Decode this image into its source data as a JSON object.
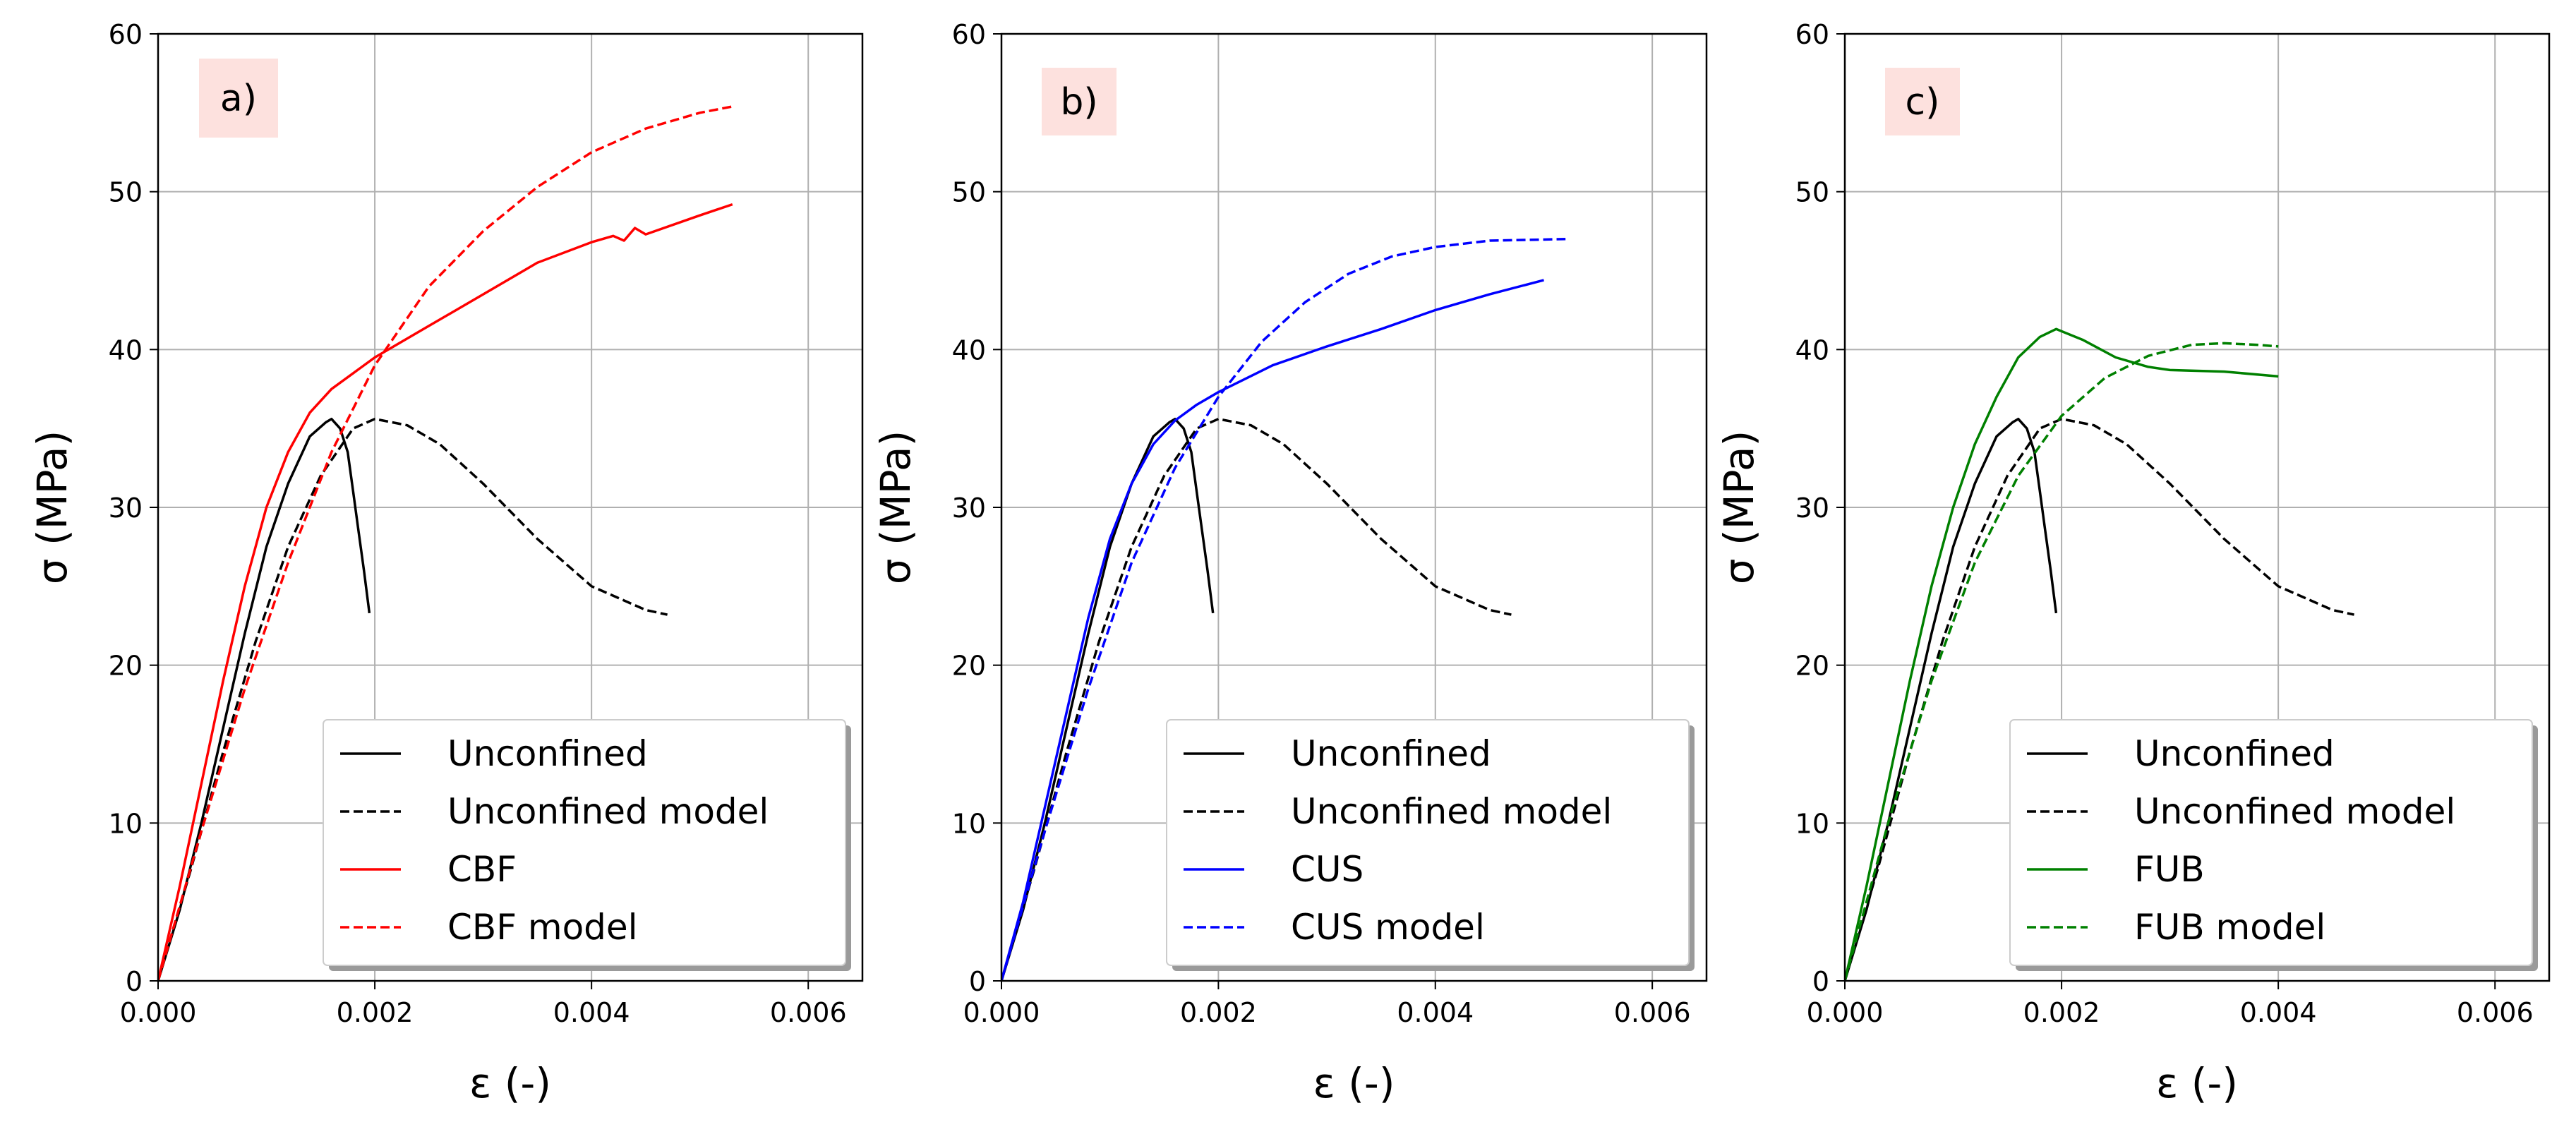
{
  "chart_data": [
    {
      "type": "line",
      "panel_label": "a)",
      "xlabel": "ε (-)",
      "ylabel": "σ  (MPa)",
      "xlim": [
        0,
        0.0065
      ],
      "ylim": [
        0,
        60
      ],
      "xticks": [
        0.0,
        0.002,
        0.004,
        0.006
      ],
      "xtick_labels": [
        "0.000",
        "0.002",
        "0.004",
        "0.006"
      ],
      "yticks": [
        0,
        10,
        20,
        30,
        40,
        50,
        60
      ],
      "ytick_labels": [
        "0",
        "10",
        "20",
        "30",
        "40",
        "50",
        "60"
      ],
      "grid": true,
      "legend_position": "lower-right",
      "series": [
        {
          "name": "Unconfined",
          "color": "#000000",
          "dash": "solid",
          "x": [
            0,
            0.0002,
            0.0004,
            0.0006,
            0.0008,
            0.001,
            0.0012,
            0.0014,
            0.00155,
            0.0016,
            0.00168,
            0.00175,
            0.0018,
            0.00185,
            0.0019,
            0.00195
          ],
          "y": [
            0,
            4.5,
            10,
            16,
            22,
            27.5,
            31.5,
            34.5,
            35.4,
            35.6,
            35,
            33.5,
            31,
            28.5,
            26,
            23.3
          ]
        },
        {
          "name": "Unconfined model",
          "color": "#000000",
          "dash": "dashed",
          "x": [
            0,
            0.0003,
            0.0006,
            0.0009,
            0.0012,
            0.0015,
            0.0018,
            0.002,
            0.0023,
            0.0026,
            0.003,
            0.0035,
            0.004,
            0.0045,
            0.0047
          ],
          "y": [
            0,
            7,
            14.5,
            21.5,
            27.5,
            32,
            35,
            35.6,
            35.2,
            34,
            31.5,
            28,
            25,
            23.5,
            23.2
          ]
        },
        {
          "name": "CBF",
          "color": "#ff0000",
          "dash": "solid",
          "x": [
            0,
            0.0002,
            0.0004,
            0.0006,
            0.0008,
            0.001,
            0.0012,
            0.0014,
            0.0016,
            0.0018,
            0.002,
            0.0025,
            0.003,
            0.0035,
            0.004,
            0.0042,
            0.0043,
            0.0044,
            0.0045,
            0.005,
            0.0053
          ],
          "y": [
            0,
            6,
            12.5,
            19,
            25,
            30,
            33.5,
            36,
            37.5,
            38.5,
            39.5,
            41.5,
            43.5,
            45.5,
            46.8,
            47.2,
            46.9,
            47.7,
            47.3,
            48.5,
            49.2
          ]
        },
        {
          "name": "CBF model",
          "color": "#ff0000",
          "dash": "dashed",
          "x": [
            0,
            0.0004,
            0.0008,
            0.0012,
            0.0016,
            0.002,
            0.0025,
            0.003,
            0.0035,
            0.004,
            0.0045,
            0.005,
            0.0053
          ],
          "y": [
            0,
            9.5,
            18.5,
            26.5,
            33.5,
            39,
            44,
            47.5,
            50.3,
            52.5,
            54,
            55,
            55.4
          ]
        }
      ]
    },
    {
      "type": "line",
      "panel_label": "b)",
      "xlabel": "ε (-)",
      "ylabel": "σ  (MPa)",
      "xlim": [
        0,
        0.0065
      ],
      "ylim": [
        0,
        60
      ],
      "xticks": [
        0.0,
        0.002,
        0.004,
        0.006
      ],
      "xtick_labels": [
        "0.000",
        "0.002",
        "0.004",
        "0.006"
      ],
      "yticks": [
        0,
        10,
        20,
        30,
        40,
        50,
        60
      ],
      "ytick_labels": [
        "0",
        "10",
        "20",
        "30",
        "40",
        "50",
        "60"
      ],
      "grid": true,
      "legend_position": "lower-right",
      "series": [
        {
          "name": "Unconfined",
          "color": "#000000",
          "dash": "solid",
          "x": [
            0,
            0.0002,
            0.0004,
            0.0006,
            0.0008,
            0.001,
            0.0012,
            0.0014,
            0.00155,
            0.0016,
            0.00168,
            0.00175,
            0.0018,
            0.00185,
            0.0019,
            0.00195
          ],
          "y": [
            0,
            4.5,
            10,
            16,
            22,
            27.5,
            31.5,
            34.5,
            35.4,
            35.6,
            35,
            33.5,
            31,
            28.5,
            26,
            23.3
          ]
        },
        {
          "name": "Unconfined model",
          "color": "#000000",
          "dash": "dashed",
          "x": [
            0,
            0.0003,
            0.0006,
            0.0009,
            0.0012,
            0.0015,
            0.0018,
            0.002,
            0.0023,
            0.0026,
            0.003,
            0.0035,
            0.004,
            0.0045,
            0.0047
          ],
          "y": [
            0,
            7,
            14.5,
            21.5,
            27.5,
            32,
            35,
            35.6,
            35.2,
            34,
            31.5,
            28,
            25,
            23.5,
            23.2
          ]
        },
        {
          "name": "CUS",
          "color": "#0000ff",
          "dash": "solid",
          "x": [
            0,
            0.0002,
            0.0004,
            0.0006,
            0.0008,
            0.001,
            0.0012,
            0.0014,
            0.0016,
            0.0018,
            0.002,
            0.0025,
            0.003,
            0.0035,
            0.004,
            0.0045,
            0.005
          ],
          "y": [
            0,
            5,
            11,
            17,
            23,
            28,
            31.5,
            34,
            35.5,
            36.5,
            37.3,
            39,
            40.2,
            41.3,
            42.5,
            43.5,
            44.4
          ]
        },
        {
          "name": "CUS model",
          "color": "#0000ff",
          "dash": "dashed",
          "x": [
            0,
            0.0004,
            0.0008,
            0.0012,
            0.0016,
            0.002,
            0.0024,
            0.0028,
            0.0032,
            0.0036,
            0.004,
            0.0045,
            0.0052
          ],
          "y": [
            0,
            9.5,
            18.5,
            26.5,
            32.5,
            37,
            40.5,
            43,
            44.8,
            45.9,
            46.5,
            46.9,
            47
          ]
        }
      ]
    },
    {
      "type": "line",
      "panel_label": "c)",
      "xlabel": "ε (-)",
      "ylabel": "σ  (MPa)",
      "xlim": [
        0,
        0.0065
      ],
      "ylim": [
        0,
        60
      ],
      "xticks": [
        0.0,
        0.002,
        0.004,
        0.006
      ],
      "xtick_labels": [
        "0.000",
        "0.002",
        "0.004",
        "0.006"
      ],
      "yticks": [
        0,
        10,
        20,
        30,
        40,
        50,
        60
      ],
      "ytick_labels": [
        "0",
        "10",
        "20",
        "30",
        "40",
        "50",
        "60"
      ],
      "grid": true,
      "legend_position": "lower-right",
      "series": [
        {
          "name": "Unconfined",
          "color": "#000000",
          "dash": "solid",
          "x": [
            0,
            0.0002,
            0.0004,
            0.0006,
            0.0008,
            0.001,
            0.0012,
            0.0014,
            0.00155,
            0.0016,
            0.00168,
            0.00175,
            0.0018,
            0.00185,
            0.0019,
            0.00195
          ],
          "y": [
            0,
            4.5,
            10,
            16,
            22,
            27.5,
            31.5,
            34.5,
            35.4,
            35.6,
            35,
            33.5,
            31,
            28.5,
            26,
            23.3
          ]
        },
        {
          "name": "Unconfined model",
          "color": "#000000",
          "dash": "dashed",
          "x": [
            0,
            0.0003,
            0.0006,
            0.0009,
            0.0012,
            0.0015,
            0.0018,
            0.002,
            0.0023,
            0.0026,
            0.003,
            0.0035,
            0.004,
            0.0045,
            0.0047
          ],
          "y": [
            0,
            7,
            14.5,
            21.5,
            27.5,
            32,
            35,
            35.6,
            35.2,
            34,
            31.5,
            28,
            25,
            23.5,
            23.2
          ]
        },
        {
          "name": "FUB",
          "color": "#008000",
          "dash": "solid",
          "x": [
            0,
            0.0002,
            0.0004,
            0.0006,
            0.0008,
            0.001,
            0.0012,
            0.0014,
            0.0016,
            0.0018,
            0.00195,
            0.0022,
            0.0025,
            0.0028,
            0.003,
            0.0035,
            0.004
          ],
          "y": [
            0,
            6,
            12.5,
            19,
            25,
            30,
            34,
            37,
            39.5,
            40.8,
            41.3,
            40.6,
            39.5,
            38.9,
            38.7,
            38.6,
            38.3
          ]
        },
        {
          "name": "FUB model",
          "color": "#008000",
          "dash": "dashed",
          "x": [
            0,
            0.0004,
            0.0008,
            0.0012,
            0.0016,
            0.002,
            0.0024,
            0.0028,
            0.0032,
            0.0035,
            0.0038,
            0.004
          ],
          "y": [
            0,
            10,
            19,
            26.5,
            32,
            35.8,
            38.2,
            39.6,
            40.3,
            40.4,
            40.3,
            40.2
          ]
        }
      ]
    }
  ]
}
